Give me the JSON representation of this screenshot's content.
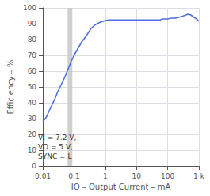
{
  "chart_data": {
    "type": "line",
    "xlabel": "IO – Output Current – mA",
    "ylabel": "Efficiency – %",
    "log": "x",
    "grid": true,
    "xlim": [
      0.01,
      1000
    ],
    "ylim": [
      0,
      100
    ],
    "xticks": [
      0.01,
      0.1,
      1,
      10,
      100,
      {
        "value": 1000,
        "label": "1 k"
      }
    ],
    "yticks": [
      0,
      10,
      20,
      30,
      40,
      50,
      60,
      70,
      80,
      90,
      100
    ],
    "x": [
      0.01,
      0.013,
      0.016,
      0.02,
      0.025,
      0.03,
      0.04,
      0.05,
      0.06,
      0.07,
      0.08,
      0.09,
      0.1,
      0.13,
      0.17,
      0.22,
      0.28,
      0.35,
      0.45,
      0.55,
      0.7,
      0.85,
      1.0,
      1.3,
      1.7,
      2.2,
      2.8,
      3.5,
      4.5,
      5.5,
      7.0,
      8.5,
      10,
      13,
      17,
      22,
      28,
      35,
      45,
      55,
      70,
      85,
      100,
      130,
      170,
      220,
      280,
      350,
      450,
      550,
      700,
      850,
      1000
    ],
    "values": [
      28,
      31,
      35,
      39,
      43,
      47,
      52,
      56,
      60,
      63,
      66,
      68,
      70,
      74,
      78,
      81,
      84,
      87,
      89,
      90,
      91,
      91.5,
      92,
      92.3,
      92.3,
      92.3,
      92.3,
      92.3,
      92.3,
      92.3,
      92.3,
      92.3,
      92.3,
      92.3,
      92.3,
      92.3,
      92.3,
      92.3,
      92.3,
      92.3,
      93,
      93,
      93,
      93.5,
      93.5,
      94,
      94.5,
      95.2,
      96,
      95.5,
      94,
      93,
      91.5
    ],
    "shade": {
      "x": [
        0.062,
        0.088
      ],
      "color": "#c8c8c8"
    },
    "annotation": "VI = 7.2 V,\nVO = 5 V,\nSYNC = L"
  }
}
